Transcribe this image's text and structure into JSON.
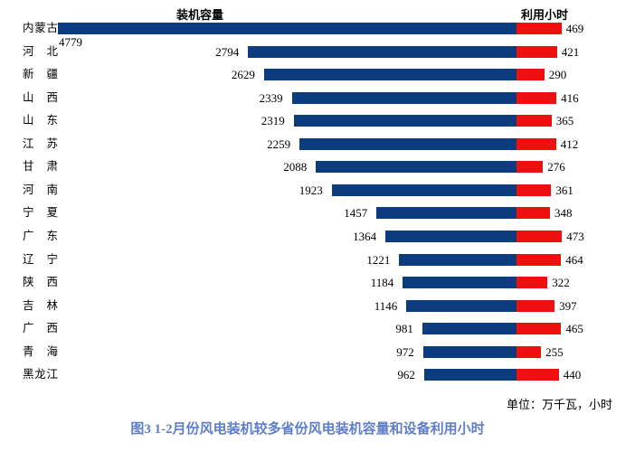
{
  "chart_data": {
    "type": "bar",
    "orientation": "horizontal-diverging",
    "title_left": "装机容量",
    "title_right": "利用小时",
    "unit_note": "单位：万千瓦，小时",
    "caption": "图3  1-2月份风电装机较多省份风电装机容量和设备利用小时",
    "caption_color": "#5F7EC9",
    "axis_max": 4779,
    "grid": false,
    "legend_position": "none",
    "categories": [
      "内蒙古",
      "河北",
      "新疆",
      "山西",
      "山东",
      "江苏",
      "甘肃",
      "河南",
      "宁夏",
      "广东",
      "辽宁",
      "陕西",
      "吉林",
      "广西",
      "青海",
      "黑龙江"
    ],
    "series": [
      {
        "name": "装机容量",
        "color": "#0A3C7E",
        "values": [
          4779,
          2794,
          2629,
          2339,
          2319,
          2259,
          2088,
          1923,
          1457,
          1364,
          1221,
          1184,
          1146,
          981,
          972,
          962
        ]
      },
      {
        "name": "利用小时",
        "color": "#EE0F0F",
        "values": [
          469,
          421,
          290,
          416,
          365,
          412,
          276,
          361,
          348,
          473,
          464,
          322,
          397,
          465,
          255,
          440
        ]
      }
    ]
  }
}
